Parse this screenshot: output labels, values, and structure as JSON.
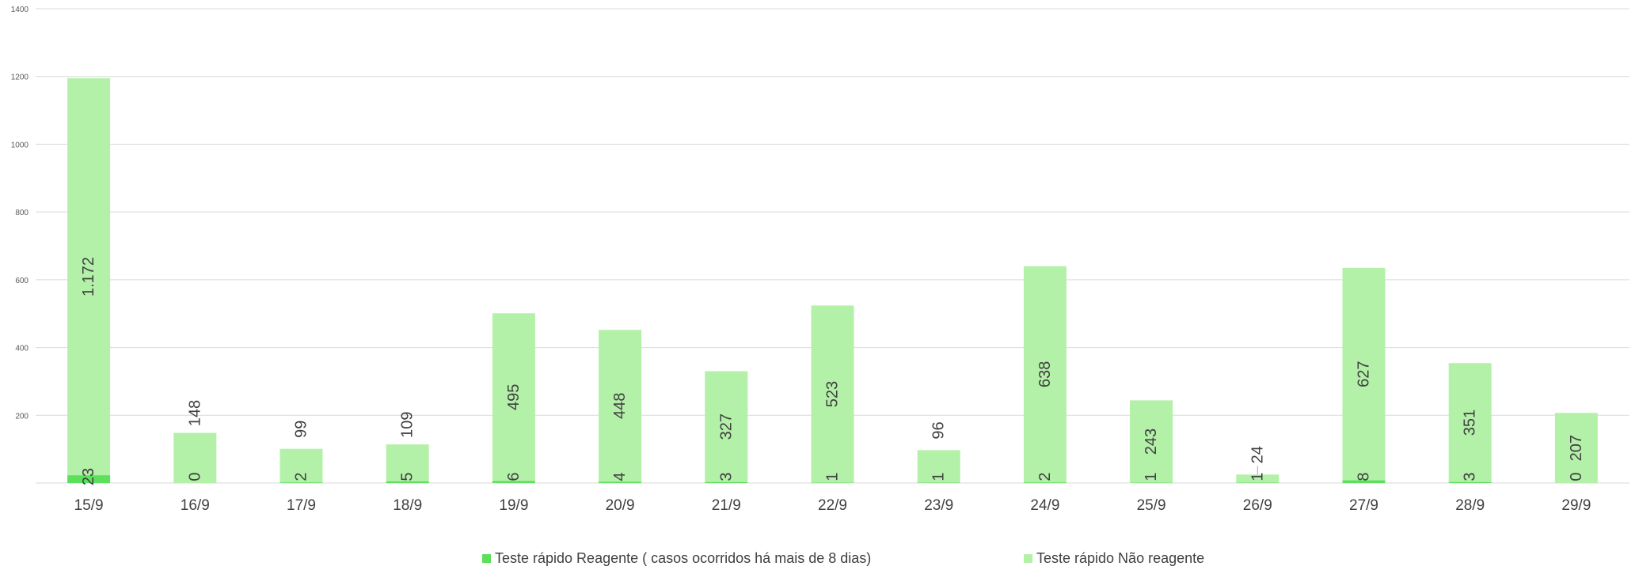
{
  "chart_data": {
    "type": "bar",
    "stacked": true,
    "categories": [
      "15/9",
      "16/9",
      "17/9",
      "18/9",
      "19/9",
      "20/9",
      "21/9",
      "22/9",
      "23/9",
      "24/9",
      "25/9",
      "26/9",
      "27/9",
      "28/9",
      "29/9"
    ],
    "series": [
      {
        "name": "Teste rápido Reagente ( casos ocorridos há mais de 8 dias)",
        "color": "#5ce05c",
        "values": [
          23,
          0,
          2,
          5,
          6,
          4,
          3,
          1,
          1,
          2,
          1,
          1,
          8,
          3,
          0
        ]
      },
      {
        "name": "Teste rápido Não reagente",
        "color": "#b3f0a8",
        "values": [
          1172,
          148,
          99,
          109,
          495,
          448,
          327,
          523,
          96,
          638,
          243,
          24,
          627,
          351,
          207
        ]
      }
    ],
    "labels": {
      "reagente": [
        "23",
        "0",
        "2",
        "5",
        "6",
        "4",
        "3",
        "1",
        "1",
        "2",
        "1",
        "1",
        "8",
        "3",
        "0"
      ],
      "nao_reagente": [
        "1.172",
        "148",
        "99",
        "109",
        "495",
        "448",
        "327",
        "523",
        "96",
        "638",
        "243",
        "24",
        "627",
        "351",
        "207"
      ]
    },
    "yticks": [
      "1400",
      "1200",
      "1000",
      "800",
      "600",
      "400",
      "200"
    ],
    "ytick_values": [
      1400,
      1200,
      1000,
      800,
      600,
      400,
      200
    ],
    "ylim": [
      0,
      1400
    ],
    "grid": true,
    "legend_position": "bottom"
  }
}
